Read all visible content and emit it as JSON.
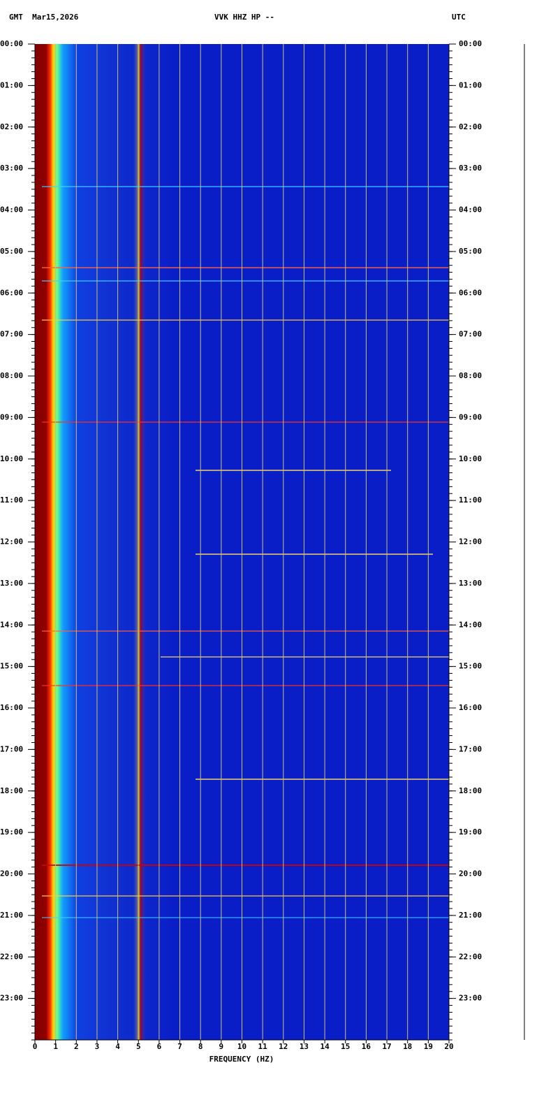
{
  "header": {
    "left": "GMT  Mar15,2026",
    "center": "VVK HHZ HP --",
    "right": "UTC"
  },
  "chart_data": {
    "type": "spectrogram",
    "xlabel": "FREQUENCY (HZ)",
    "xlim": [
      0,
      20
    ],
    "xticks": [
      0,
      1,
      2,
      3,
      4,
      5,
      6,
      7,
      8,
      9,
      10,
      11,
      12,
      13,
      14,
      15,
      16,
      17,
      18,
      19,
      20
    ],
    "ylim": [
      0,
      24
    ],
    "y_inverted": true,
    "grid": true,
    "yticks": [
      {
        "value": 0,
        "label": "00:00"
      },
      {
        "value": 1,
        "label": "01:00"
      },
      {
        "value": 2,
        "label": "02:00"
      },
      {
        "value": 3,
        "label": "03:00"
      },
      {
        "value": 4,
        "label": "04:00"
      },
      {
        "value": 5,
        "label": "05:00"
      },
      {
        "value": 6,
        "label": "06:00"
      },
      {
        "value": 7,
        "label": "07:00"
      },
      {
        "value": 8,
        "label": "08:00"
      },
      {
        "value": 9,
        "label": "09:00"
      },
      {
        "value": 10,
        "label": "10:00"
      },
      {
        "value": 11,
        "label": "11:00"
      },
      {
        "value": 12,
        "label": "12:00"
      },
      {
        "value": 13,
        "label": "13:00"
      },
      {
        "value": 14,
        "label": "14:00"
      },
      {
        "value": 15,
        "label": "15:00"
      },
      {
        "value": 16,
        "label": "16:00"
      },
      {
        "value": 17,
        "label": "17:00"
      },
      {
        "value": 18,
        "label": "18:00"
      },
      {
        "value": 19,
        "label": "19:00"
      },
      {
        "value": 20,
        "label": "20:00"
      },
      {
        "value": 21,
        "label": "21:00"
      },
      {
        "value": 22,
        "label": "22:00"
      },
      {
        "value": 23,
        "label": "23:00"
      }
    ]
  }
}
